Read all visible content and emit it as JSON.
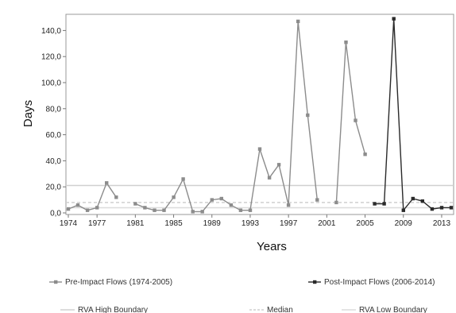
{
  "chart_data": {
    "type": "line",
    "xlabel": "Years",
    "ylabel": "Days",
    "ylim": [
      0,
      150
    ],
    "yticks": [
      "0,0",
      "20,0",
      "40,0",
      "60,0",
      "80,0",
      "100,0",
      "120,0",
      "140,0"
    ],
    "ytick_values": [
      0,
      20,
      40,
      60,
      80,
      100,
      120,
      140
    ],
    "xlim": [
      1974,
      2014
    ],
    "xticks": [
      "1974",
      "1977",
      "1981",
      "1985",
      "1989",
      "1993",
      "1997",
      "2001",
      "2005",
      "2009",
      "2013"
    ],
    "xtick_values": [
      1974,
      1977,
      1981,
      1985,
      1989,
      1993,
      1997,
      2001,
      2005,
      2009,
      2013
    ],
    "grid": false,
    "legend_position": "bottom",
    "series": [
      {
        "name": "Pre-Impact Flows (1974-2005)",
        "color": "#8c8c8c",
        "marker": "square",
        "segments": [
          {
            "x": [
              1974,
              1975,
              1976,
              1977,
              1978,
              1979
            ],
            "y": [
              3,
              6,
              2,
              4,
              23,
              12
            ]
          },
          {
            "x": [
              1981,
              1982,
              1983,
              1984,
              1985,
              1986,
              1987,
              1988,
              1989,
              1990,
              1991,
              1992,
              1993,
              1994,
              1995,
              1996,
              1997,
              1998,
              1999,
              2000
            ],
            "y": [
              7,
              4,
              2,
              2,
              12,
              26,
              1,
              1,
              10,
              11,
              6,
              2,
              2,
              49,
              27,
              37,
              6,
              147,
              75,
              10
            ]
          },
          {
            "x": [
              2002,
              2003,
              2004,
              2005
            ],
            "y": [
              8,
              131,
              71,
              45
            ]
          }
        ]
      },
      {
        "name": "Post-Impact Flows (2006-2014)",
        "color": "#2a2a2a",
        "marker": "square",
        "segments": [
          {
            "x": [
              2006,
              2007,
              2008,
              2009,
              2010,
              2011,
              2012,
              2013,
              2014
            ],
            "y": [
              7,
              7,
              149,
              2,
              11,
              9,
              3,
              4,
              4
            ]
          }
        ]
      }
    ],
    "reference_lines": [
      {
        "name": "RVA High Boundary",
        "y": 21,
        "color": "#d0d0d0",
        "dash": "solid"
      },
      {
        "name": "Median",
        "y": 8,
        "color": "#cfcfcf",
        "dash": "dashed"
      },
      {
        "name": "RVA Low Boundary",
        "y": 4,
        "color": "#dcdcdc",
        "dash": "solid"
      }
    ]
  }
}
